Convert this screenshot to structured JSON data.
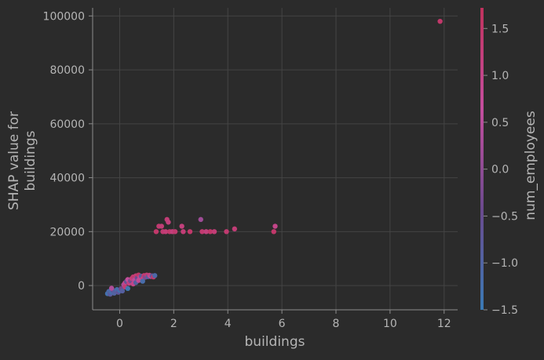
{
  "chart_data": {
    "type": "scatter",
    "title": "",
    "xlabel": "buildings",
    "ylabel_lines": [
      "SHAP value for",
      "buildings"
    ],
    "xlim": [
      -1.0,
      12.5
    ],
    "ylim": [
      -9000,
      103000
    ],
    "xticks": [
      0,
      2,
      4,
      6,
      8,
      10,
      12
    ],
    "yticks": [
      0,
      20000,
      40000,
      60000,
      80000,
      100000
    ],
    "grid": true,
    "colorbar": {
      "label": "num_employees",
      "range": [
        -1.5,
        1.72
      ],
      "ticks": [
        -1.5,
        -1.0,
        -0.5,
        0.0,
        0.5,
        1.0,
        1.5
      ],
      "tick_labels": [
        "−1.5",
        "−1.0",
        "−0.5",
        "0.0",
        "0.5",
        "1.0",
        "1.5"
      ],
      "colors": [
        "#3a7ab5",
        "#6b4a8e",
        "#c44e9e",
        "#c0325d"
      ]
    },
    "points": [
      {
        "x": 11.85,
        "y": 98000,
        "c": 1.5
      },
      {
        "x": 1.75,
        "y": 24500,
        "c": 1.3
      },
      {
        "x": 1.8,
        "y": 23500,
        "c": 1.2
      },
      {
        "x": 3.0,
        "y": 24500,
        "c": 0.2
      },
      {
        "x": 1.45,
        "y": 22000,
        "c": 1.4
      },
      {
        "x": 1.55,
        "y": 22000,
        "c": 1.3
      },
      {
        "x": 2.3,
        "y": 22000,
        "c": 1.2
      },
      {
        "x": 5.75,
        "y": 22000,
        "c": 1.0
      },
      {
        "x": 4.25,
        "y": 21000,
        "c": 1.3
      },
      {
        "x": 1.35,
        "y": 20000,
        "c": 1.5
      },
      {
        "x": 1.6,
        "y": 20000,
        "c": 1.4
      },
      {
        "x": 1.7,
        "y": 20000,
        "c": 1.3
      },
      {
        "x": 1.85,
        "y": 20000,
        "c": 1.5
      },
      {
        "x": 1.95,
        "y": 20000,
        "c": 1.2
      },
      {
        "x": 2.05,
        "y": 20000,
        "c": 1.4
      },
      {
        "x": 2.35,
        "y": 20000,
        "c": 1.3
      },
      {
        "x": 2.6,
        "y": 20000,
        "c": 1.5
      },
      {
        "x": 3.05,
        "y": 20000,
        "c": 1.4
      },
      {
        "x": 3.2,
        "y": 20000,
        "c": 1.2
      },
      {
        "x": 3.35,
        "y": 20000,
        "c": 1.5
      },
      {
        "x": 3.5,
        "y": 20000,
        "c": 1.3
      },
      {
        "x": 3.95,
        "y": 20000,
        "c": 1.4
      },
      {
        "x": 5.7,
        "y": 20000,
        "c": 1.5
      },
      {
        "x": -0.45,
        "y": -3000,
        "c": -1.3
      },
      {
        "x": -0.4,
        "y": -2200,
        "c": -1.1
      },
      {
        "x": -0.35,
        "y": -3200,
        "c": -0.8
      },
      {
        "x": -0.3,
        "y": -2500,
        "c": -1.2
      },
      {
        "x": -0.25,
        "y": -1800,
        "c": -0.6
      },
      {
        "x": -0.2,
        "y": -2800,
        "c": -1.0
      },
      {
        "x": -0.15,
        "y": -2000,
        "c": -0.9
      },
      {
        "x": -0.1,
        "y": -1500,
        "c": -1.2
      },
      {
        "x": -0.05,
        "y": -2500,
        "c": -0.7
      },
      {
        "x": 0.0,
        "y": -1800,
        "c": -1.3
      },
      {
        "x": 0.05,
        "y": -1200,
        "c": -0.4
      },
      {
        "x": 0.1,
        "y": -2000,
        "c": -0.9
      },
      {
        "x": 0.15,
        "y": 300,
        "c": 0.3
      },
      {
        "x": 0.2,
        "y": 1000,
        "c": 0.9
      },
      {
        "x": 0.25,
        "y": 1500,
        "c": -0.6
      },
      {
        "x": 0.3,
        "y": 2200,
        "c": 0.7
      },
      {
        "x": 0.35,
        "y": 900,
        "c": 1.1
      },
      {
        "x": 0.4,
        "y": 1800,
        "c": -0.3
      },
      {
        "x": 0.45,
        "y": 2600,
        "c": 1.2
      },
      {
        "x": 0.5,
        "y": 3200,
        "c": 1.4
      },
      {
        "x": 0.55,
        "y": 2000,
        "c": 0.5
      },
      {
        "x": 0.6,
        "y": 3600,
        "c": 1.3
      },
      {
        "x": 0.65,
        "y": 2800,
        "c": -0.5
      },
      {
        "x": 0.7,
        "y": 3900,
        "c": 1.5
      },
      {
        "x": 0.75,
        "y": 3000,
        "c": 0.9
      },
      {
        "x": 0.8,
        "y": 3500,
        "c": -0.8
      },
      {
        "x": 0.85,
        "y": 2500,
        "c": 1.1
      },
      {
        "x": 0.9,
        "y": 3700,
        "c": 1.4
      },
      {
        "x": 0.95,
        "y": 3100,
        "c": -0.2
      },
      {
        "x": 1.0,
        "y": 3900,
        "c": 1.3
      },
      {
        "x": 1.05,
        "y": 3300,
        "c": -1.0
      },
      {
        "x": 1.1,
        "y": 3800,
        "c": 1.2
      },
      {
        "x": 1.15,
        "y": 3400,
        "c": 0.6
      },
      {
        "x": 1.2,
        "y": 3600,
        "c": -0.7
      },
      {
        "x": 1.25,
        "y": 3200,
        "c": 1.5
      },
      {
        "x": 1.3,
        "y": 3700,
        "c": -1.1
      },
      {
        "x": 0.5,
        "y": 600,
        "c": 1.0
      },
      {
        "x": 0.6,
        "y": 1100,
        "c": -0.9
      },
      {
        "x": 0.7,
        "y": 1900,
        "c": 0.8
      },
      {
        "x": 0.85,
        "y": 1600,
        "c": -1.2
      },
      {
        "x": -0.3,
        "y": -1000,
        "c": 0.4
      },
      {
        "x": 0.2,
        "y": -500,
        "c": 1.3
      },
      {
        "x": 0.3,
        "y": -1100,
        "c": -1.4
      }
    ]
  }
}
